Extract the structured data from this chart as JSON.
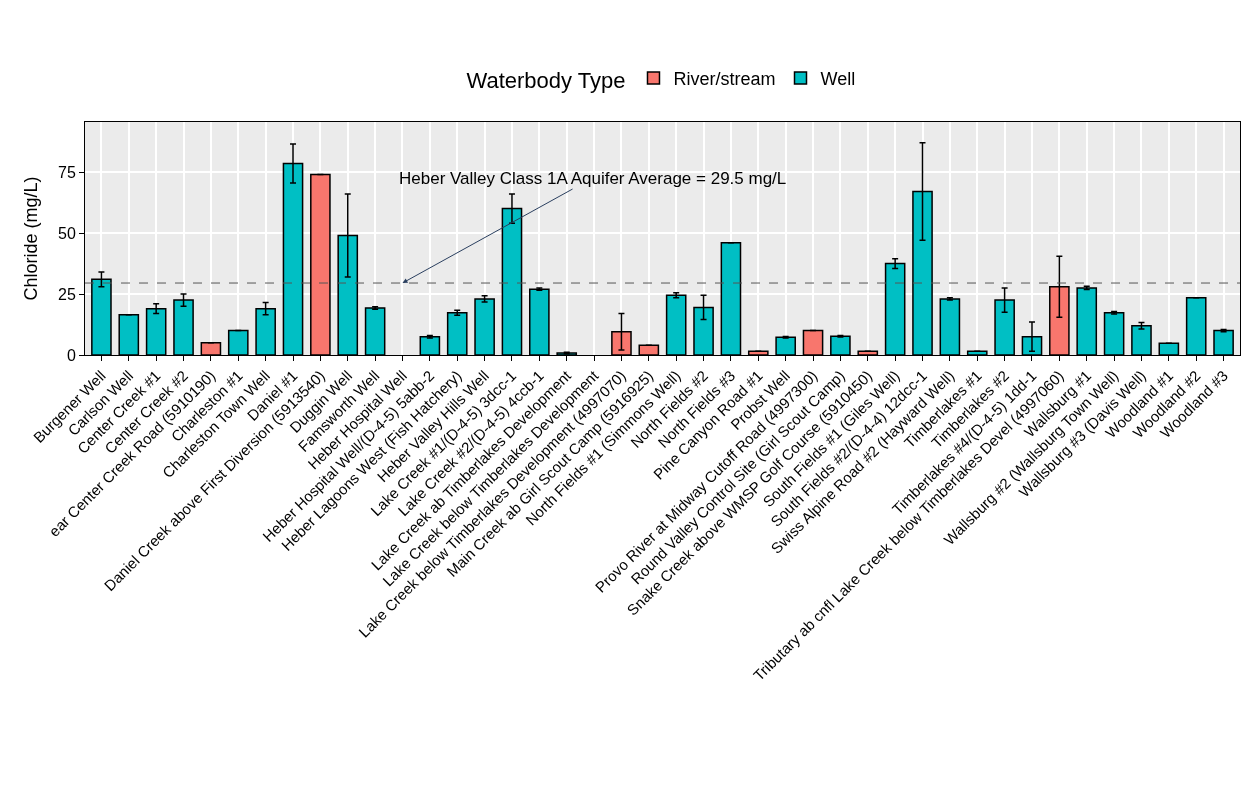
{
  "chart_data": {
    "type": "bar",
    "ylabel": "Chloride (mg/L)",
    "legend_title": "Waterbody Type",
    "legend": "top",
    "grid": true,
    "categories": [
      "Burgener Well",
      "Carlson Well",
      "Center Creek #1",
      "Center Creek #2",
      "ear Center Creek Road (5910190)",
      "Charleston #1",
      "Charleston Town Well",
      "Daniel #1",
      "Daniel Creek above First Diversion (5913540)",
      "Duggin Well",
      "Famsworth Well",
      "Heber Hospital Well",
      "Heber Hospital Well/(D-4-5) 5abb-2",
      "Heber Lagoons West (Fish Hatchery)",
      "Heber Valley Hills Well",
      "Lake Creek #1/(D-4-5) 3dcc-1",
      "Lake Creek #2/(D-4-5) 4ccb-1",
      "Lake Creek ab Timberlakes Development",
      "Lake Creek below Timberlakes Development",
      "Lake Creek below Timberlakes Development (4997070)",
      "Main Creek ab Girl Scout Camp (5916925)",
      "North Fields #1 (Simmons Well)",
      "North Fields #2",
      "North Fields #3",
      "Pine Canyon Road #1",
      "Probst Well",
      "Provo River at Midway Cutoff Road (4997300)",
      "Round Valley Control Site (Girl Scout Camp)",
      "Snake Creek above WMSP Golf Course (5910450)",
      "South Fields #1 (Giles Well)",
      "South Fields #2/(D-4-4) 12dcc-1",
      "Swiss Alpine Road #2 (Hayward Well)",
      "Timberlakes #1",
      "Timberlakes #2",
      "Timberlakes #4/(D-4-5) 1dd-1",
      "Tributary ab cnfl Lake Creek below Timberlakes Devel (4997060)",
      "Wallsburg #1",
      "Wallsburg #2 (Wallsburg Town Well)",
      "Wallsburg #3 (Davis Well)",
      "Woodland #1",
      "Woodland #2",
      "Woodland #3"
    ],
    "series": [
      {
        "name": "River/stream",
        "color": "#f8766d",
        "values": [
          null,
          null,
          null,
          null,
          5,
          null,
          null,
          null,
          74,
          null,
          null,
          null,
          null,
          null,
          null,
          null,
          null,
          null,
          null,
          9.5,
          4,
          null,
          null,
          null,
          1.5,
          null,
          10,
          null,
          1.5,
          null,
          null,
          null,
          null,
          null,
          null,
          28,
          null,
          null,
          null,
          null,
          null,
          null
        ],
        "errors": [
          null,
          null,
          null,
          null,
          null,
          null,
          null,
          null,
          null,
          null,
          null,
          null,
          null,
          null,
          null,
          null,
          null,
          null,
          null,
          7.5,
          null,
          null,
          null,
          null,
          null,
          null,
          null,
          null,
          null,
          null,
          null,
          null,
          null,
          null,
          null,
          12.5,
          null,
          null,
          null,
          null,
          null,
          null
        ]
      },
      {
        "name": "Well",
        "color": "#00bfc4",
        "values": [
          31,
          16.5,
          19,
          22.5,
          null,
          10,
          19,
          78.5,
          null,
          49,
          19.3,
          null,
          7.5,
          17.3,
          23,
          60,
          27,
          0.8,
          null,
          null,
          null,
          24.5,
          19.5,
          46,
          null,
          7.3,
          null,
          7.7,
          null,
          37.5,
          67,
          23,
          1.5,
          22.5,
          7.5,
          null,
          27.5,
          17.3,
          12,
          4.8,
          23.5,
          10
        ],
        "errors": [
          3,
          null,
          2,
          2.5,
          null,
          null,
          2.5,
          8,
          null,
          17,
          0.5,
          null,
          0.5,
          1,
          1.3,
          6,
          0.5,
          0.3,
          null,
          null,
          null,
          1,
          5,
          null,
          null,
          0.3,
          null,
          0.3,
          null,
          2,
          20,
          0.5,
          null,
          5,
          6,
          null,
          0.7,
          0.5,
          1.3,
          null,
          null,
          0.5
        ]
      }
    ],
    "ylim": [
      0,
      95.5
    ],
    "yticks": [
      0,
      25,
      50,
      75
    ],
    "ref_lines": [
      {
        "axis": "y",
        "value": 29.5,
        "color": "#555555",
        "line_style": "dashed"
      }
    ],
    "annotations": [
      {
        "text": "Heber Valley Class 1A Aquifer Average = 29.5 mg/L",
        "x": "Heber Hospital Well",
        "y": 29.5
      }
    ]
  }
}
